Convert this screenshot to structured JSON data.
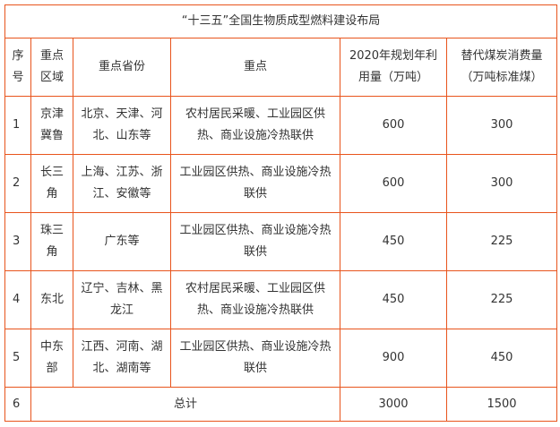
{
  "title": "“十三五”全国生物质成型燃料建设布局",
  "headers": {
    "seq": "序号",
    "region": "重点区域",
    "provinces": "重点省份",
    "focus": "重点",
    "usage": "2020年规划年利用量（万吨）",
    "coal": "替代煤炭消费量（万吨标准煤）"
  },
  "rows": [
    {
      "seq": "1",
      "region": "京津冀鲁",
      "provinces": "北京、天津、河北、山东等",
      "focus": "农村居民采暖、工业园区供热、商业设施冷热联供",
      "usage": "600",
      "coal": "300"
    },
    {
      "seq": "2",
      "region": "长三角",
      "provinces": "上海、江苏、浙江、安徽等",
      "focus": "工业园区供热、商业设施冷热联供",
      "usage": "600",
      "coal": "300"
    },
    {
      "seq": "3",
      "region": "珠三角",
      "provinces": "广东等",
      "focus": "工业园区供热、商业设施冷热联供",
      "usage": "450",
      "coal": "225"
    },
    {
      "seq": "4",
      "region": "东北",
      "provinces": "辽宁、吉林、黑龙江",
      "focus": "农村居民采暖、工业园区供热、商业设施冷热联供",
      "usage": "450",
      "coal": "225"
    },
    {
      "seq": "5",
      "region": "中东部",
      "provinces": "江西、河南、湖北、湖南等",
      "focus": "工业园区供热、商业设施冷热联供",
      "usage": "900",
      "coal": "450"
    }
  ],
  "total": {
    "seq": "6",
    "label": "总计",
    "usage": "3000",
    "coal": "1500"
  },
  "colors": {
    "border": "#e8541c"
  }
}
